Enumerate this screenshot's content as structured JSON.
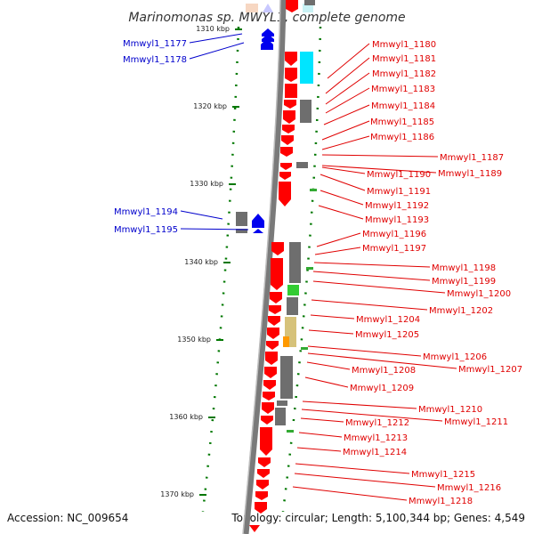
{
  "title": "Marinomonas sp. MWYL1, complete genome",
  "accession": "Accession: NC_009654",
  "topology": "Topology: circular; Length: 5,100,344 bp; Genes: 4,549",
  "ticks": [
    "1310 kbp",
    "1320 kbp",
    "1330 kbp",
    "1340 kbp",
    "1350 kbp",
    "1360 kbp",
    "1370 kbp"
  ],
  "labels_left": [
    "Mmwyl1_1177",
    "Mmwyl1_1178",
    "Mmwyl1_1194",
    "Mmwyl1_1195"
  ],
  "labels_right": [
    "Mmwyl1_1180",
    "Mmwyl1_1181",
    "Mmwyl1_1182",
    "Mmwyl1_1183",
    "Mmwyl1_1184",
    "Mmwyl1_1185",
    "Mmwyl1_1186",
    "Mmwyl1_1187",
    "Mmwyl1_1190",
    "Mmwyl1_1189",
    "Mmwyl1_1191",
    "Mmwyl1_1192",
    "Mmwyl1_1193",
    "Mmwyl1_1196",
    "Mmwyl1_1197",
    "Mmwyl1_1198",
    "Mmwyl1_1199",
    "Mmwyl1_1200",
    "Mmwyl1_1202",
    "Mmwyl1_1204",
    "Mmwyl1_1205",
    "Mmwyl1_1206",
    "Mmwyl1_1207",
    "Mmwyl1_1208",
    "Mmwyl1_1209",
    "Mmwyl1_1210",
    "Mmwyl1_1211",
    "Mmwyl1_1212",
    "Mmwyl1_1213",
    "Mmwyl1_1214",
    "Mmwyl1_1215",
    "Mmwyl1_1216",
    "Mmwyl1_1218"
  ],
  "colors": {
    "forward": "#ff0000",
    "reverse": "#0000ee",
    "backbone": "#7a7a7a",
    "tick": "#007700",
    "cog_gray": "#6e6e6e",
    "cog_cyan": "#00e5ff",
    "cog_green": "#33cc33",
    "cog_tan": "#d6c27a",
    "cog_orange": "#ff9900"
  }
}
